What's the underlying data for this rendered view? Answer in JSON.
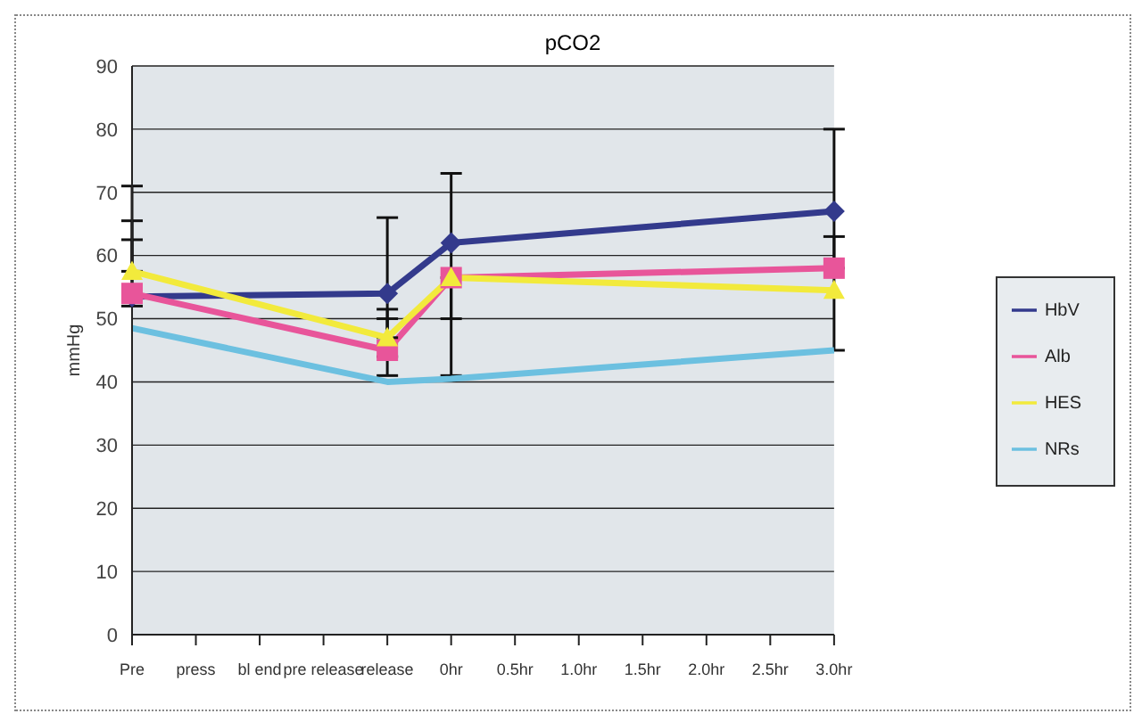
{
  "chart_data": {
    "type": "line",
    "title": "pCO2",
    "ylabel": "mmHg",
    "categories": [
      "Pre",
      "press",
      "bl end",
      "pre release",
      "release",
      "0hr",
      "0.5hr",
      "1.0hr",
      "1.5hr",
      "2.0hr",
      "2.5hr",
      "3.0hr"
    ],
    "series": [
      {
        "name": "HbV",
        "color": "#333a8c",
        "marker": "diamond",
        "values": [
          53.5,
          null,
          null,
          null,
          54,
          62,
          null,
          null,
          null,
          null,
          null,
          67
        ],
        "errors": [
          [
            53.5,
            62.5
          ],
          null,
          null,
          null,
          [
            41,
            66
          ],
          [
            50,
            73
          ],
          null,
          null,
          null,
          null,
          null,
          [
            45,
            80
          ]
        ]
      },
      {
        "name": "Alb",
        "color": "#e8559a",
        "marker": "square",
        "values": [
          54,
          null,
          null,
          null,
          45,
          56.5,
          null,
          null,
          null,
          null,
          null,
          58
        ],
        "errors": [
          [
            52,
            65.5
          ],
          null,
          null,
          null,
          [
            44,
            51.5
          ],
          null,
          null,
          null,
          null,
          null,
          null,
          [
            58,
            63
          ]
        ]
      },
      {
        "name": "HES",
        "color": "#f2ea3c",
        "marker": "triangle",
        "values": [
          57.5,
          null,
          null,
          null,
          47,
          56.5,
          null,
          null,
          null,
          null,
          null,
          54.5
        ],
        "errors": [
          [
            57.5,
            71
          ],
          null,
          null,
          null,
          [
            47,
            50
          ],
          [
            41,
            56.5
          ],
          null,
          null,
          null,
          null,
          null,
          null
        ]
      },
      {
        "name": "NRs",
        "color": "#6cc0e0",
        "marker": "none",
        "values": [
          48.5,
          null,
          null,
          null,
          40,
          40.5,
          null,
          null,
          null,
          null,
          null,
          45
        ]
      }
    ],
    "ylim": [
      0,
      90
    ],
    "yticks": [
      0,
      10,
      20,
      30,
      40,
      50,
      60,
      70,
      80,
      90
    ],
    "grid": "y",
    "legend": "right"
  }
}
